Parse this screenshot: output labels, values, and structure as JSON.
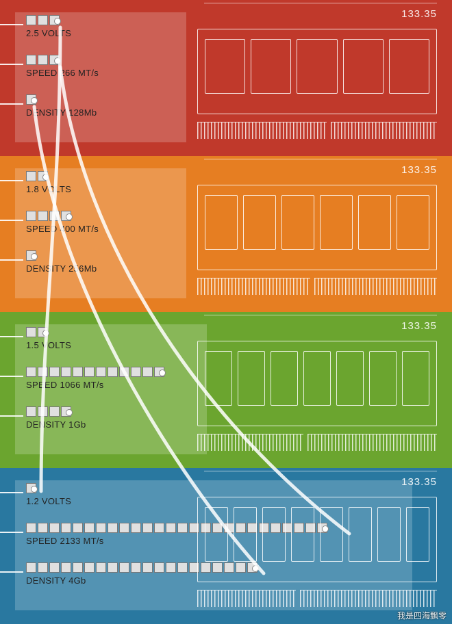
{
  "watermark": "我是四海飘零",
  "generations": [
    {
      "bg": "#c0392b",
      "dim": "133.35",
      "volts_boxes": 3,
      "volts_label": "2.5 VOLTS",
      "speed_boxes": 3,
      "speed_label": "SPEED 266 MT/s",
      "density_boxes": 1,
      "density_label": "DENSITY  128Mb",
      "speed_wide": false,
      "chips": 5,
      "notch_pos": 0.55
    },
    {
      "bg": "#e67e22",
      "dim": "133.35",
      "volts_boxes": 2,
      "volts_label": "1.8 VOLTS",
      "speed_boxes": 4,
      "speed_label": "SPEED 400 MT/s",
      "density_boxes": 1,
      "density_label": "DENSITY  256Mb",
      "speed_wide": false,
      "chips": 6,
      "notch_pos": 0.48
    },
    {
      "bg": "#6ba52f",
      "dim": "133.35",
      "volts_boxes": 2,
      "volts_label": "1.5 VOLTS",
      "speed_boxes": 12,
      "speed_label": "SPEED 1066 MT/s",
      "density_boxes": 4,
      "density_label": "DENSITY  1Gb",
      "speed_wide": true,
      "chips": 7,
      "notch_pos": 0.45
    },
    {
      "bg": "#2978a0",
      "dim": "133.35",
      "volts_boxes": 1,
      "volts_label": "1.2 VOLTS",
      "speed_boxes": 26,
      "speed_label": "SPEED 2133 MT/s",
      "density_boxes": 20,
      "density_label": "DENSITY  4Gb",
      "speed_wide": true,
      "chips": 8,
      "notch_pos": 0.42
    }
  ],
  "curves": {
    "stroke": "rgba(255,255,255,0.85)",
    "width": 5,
    "paths": [
      "M 88,40  C 88,300 60,480 60,718",
      "M 88,98  C 120,360 300,620 510,780",
      "M 50,156 C 80,420 260,700 385,838"
    ]
  }
}
